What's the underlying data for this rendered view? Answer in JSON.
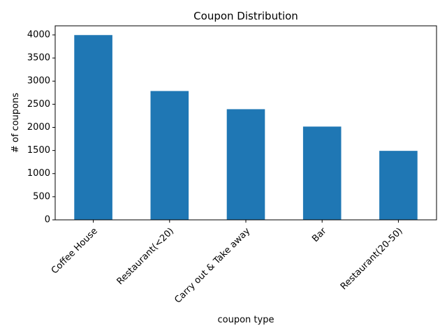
{
  "chart_data": {
    "type": "bar",
    "title": "Coupon Distribution",
    "xlabel": "coupon type",
    "ylabel": "# of coupons",
    "categories": [
      "Coffee House",
      "Restaurant(<20)",
      "Carry out & Take away",
      "Bar",
      "Restaurant(20-50)"
    ],
    "values": [
      3996,
      2786,
      2393,
      2017,
      1492
    ],
    "ylim": [
      0,
      4196
    ],
    "yticks": [
      0,
      500,
      1000,
      1500,
      2000,
      2500,
      3000,
      3500,
      4000
    ],
    "grid": false,
    "legend": "none",
    "bar_color": "#1f77b4",
    "xtick_rotation": 45
  }
}
